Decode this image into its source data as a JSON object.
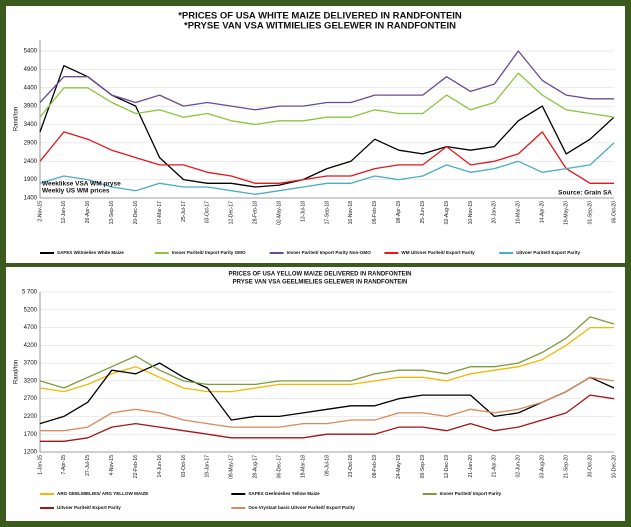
{
  "chart_data": [
    {
      "type": "line",
      "title": "*PRICES OF USA WHITE MAIZE DELIVERED IN RANDFONTEIN",
      "subtitle": "*PRYSE VAN VSA WITMIELIES GELEWER IN RANDFONTEIN",
      "y_label": "Rand/ton",
      "annotations": [
        "Weeklikse VSA WM pryse",
        "Weekly US WM prices"
      ],
      "source": "Source: Grain SA",
      "x": [
        "2-Nov-15",
        "12-Jan-16",
        "26-Apr-16",
        "13-Sep-16",
        "20-Dec-16",
        "07-Mar-17",
        "25-Jul-17",
        "03-Oct-17",
        "12-Dec-17",
        "28-Feb-18",
        "02-May-18",
        "13-Jul-18",
        "17-Sep-18",
        "16-Nov-18",
        "05-Feb-19",
        "08-Apr-19",
        "25-Jun-19",
        "02-Aug-19",
        "10-Nov-19",
        "20-Jan-20",
        "10-Mar-20",
        "14-Apr-20",
        "19-May-20",
        "01-Sep-20",
        "06-Oct-20"
      ],
      "ylim": [
        1400,
        5700
      ],
      "yticks": [
        1400,
        1900,
        2400,
        2900,
        3400,
        3900,
        4400,
        4900,
        5400
      ],
      "grid": true,
      "series": [
        {
          "name": "SAFEX  Witmielies  White Maize",
          "color": "#000000",
          "values": [
            3200,
            5000,
            4700,
            4200,
            3900,
            2500,
            1900,
            1800,
            1800,
            1700,
            1750,
            1900,
            2200,
            2400,
            3000,
            2700,
            2600,
            2800,
            2700,
            2800,
            3500,
            3900,
            2600,
            3000,
            3600
          ]
        },
        {
          "name": "Invoer  Pariteit/  Import  Parity GMO",
          "color": "#8cc63f",
          "values": [
            3600,
            4400,
            4400,
            4000,
            3700,
            3800,
            3600,
            3700,
            3500,
            3400,
            3500,
            3500,
            3600,
            3600,
            3800,
            3700,
            3700,
            4200,
            3800,
            4000,
            4800,
            4200,
            3800,
            3700,
            3600
          ]
        },
        {
          "name": "Invoer  Pariteit/  Import  Parity Non-GMO",
          "color": "#6a4c93",
          "values": [
            4000,
            4700,
            4700,
            4200,
            4000,
            4200,
            3900,
            4000,
            3900,
            3800,
            3900,
            3900,
            4000,
            4000,
            4200,
            4200,
            4200,
            4700,
            4300,
            4500,
            5400,
            4600,
            4200,
            4100,
            4100
          ]
        },
        {
          "name": "WM Uitvoer  Pariteit/  Export  Parity",
          "color": "#e3161b",
          "values": [
            2400,
            3200,
            3000,
            2700,
            2500,
            2300,
            2300,
            2100,
            2000,
            1800,
            1800,
            1900,
            2000,
            2000,
            2200,
            2300,
            2300,
            2800,
            2300,
            2400,
            2600,
            3200,
            2200,
            1800,
            1800
          ]
        },
        {
          "name": "Uitvoer  Pariteit/  Export  Parity",
          "color": "#4bacc6",
          "values": [
            1800,
            2000,
            1900,
            1700,
            1600,
            1800,
            1700,
            1700,
            1600,
            1500,
            1600,
            1700,
            1800,
            1800,
            2000,
            1900,
            2000,
            2300,
            2100,
            2200,
            2400,
            2100,
            2200,
            2300,
            2900
          ]
        }
      ]
    },
    {
      "type": "line",
      "title": "PRICES OF USA YELLOW MAIZE DELIVERED IN RANDFONTEIN",
      "subtitle": "PRYSE VAN VSA GEELMIELIES GELEWER IN RANDFONTEIN",
      "y_label": "Rand/ton",
      "x": [
        "1-Jan-15",
        "7-Apr-15",
        "27-Jul-15",
        "4-Nov-15",
        "22-Feb-16",
        "14-Jun-16",
        "03-Oct-16",
        "19-Jan-17",
        "09-May-17",
        "28-Aug-17",
        "06-Dec-17",
        "19-Mar-18",
        "09-Jul-18",
        "23-Oct-18",
        "08-Feb-19",
        "24-May-19",
        "09-Sep-19",
        "12-Dec-19",
        "21-Jan-20",
        "21-Apr-20",
        "02-Jun-20",
        "03-Aug-20",
        "21-Sep-20",
        "30-Oct-20",
        "10-Dec-20"
      ],
      "ylim": [
        1200,
        5700
      ],
      "yticks": [
        1200,
        1700,
        2200,
        2700,
        3200,
        3700,
        4200,
        4700,
        5200,
        {
          "value": 5700,
          "label": "5 700"
        }
      ],
      "grid": true,
      "series": [
        {
          "name": "ARG GEELMIELIES/  ARG YELLOW MAIZE",
          "color": "#f2b705",
          "values": [
            3000,
            2900,
            3100,
            3400,
            3600,
            3300,
            3000,
            2900,
            2900,
            3000,
            3100,
            3100,
            3100,
            3100,
            3200,
            3300,
            3300,
            3200,
            3400,
            3500,
            3600,
            3800,
            4200,
            4700,
            4700
          ]
        },
        {
          "name": "SAFEX  Geelmielies  Yellow Maize",
          "color": "#000000",
          "values": [
            2000,
            2200,
            2600,
            3500,
            3400,
            3700,
            3300,
            3000,
            2100,
            2200,
            2200,
            2300,
            2400,
            2500,
            2500,
            2700,
            2800,
            2800,
            2800,
            2200,
            2300,
            2600,
            2900,
            3300,
            3000
          ]
        },
        {
          "name": "Invoer  Pariteit/  Import  Parity",
          "color": "#7f9a3a",
          "values": [
            3200,
            3000,
            3300,
            3600,
            3900,
            3500,
            3200,
            3100,
            3100,
            3100,
            3200,
            3200,
            3200,
            3200,
            3400,
            3500,
            3500,
            3400,
            3600,
            3600,
            3700,
            4000,
            4400,
            5000,
            4800
          ]
        },
        {
          "name": "Uitvoer  Pariteit/  Export  Parity",
          "color": "#a31515",
          "values": [
            1500,
            1500,
            1600,
            1900,
            2000,
            1900,
            1800,
            1700,
            1600,
            1600,
            1600,
            1600,
            1700,
            1700,
            1700,
            1900,
            1900,
            1800,
            2000,
            1800,
            1900,
            2100,
            2300,
            2800,
            2700
          ]
        },
        {
          "name": "Oos-Vrystaat basis  Uitvoer  Pariteit/  Export  Parity",
          "color": "#d9895b",
          "values": [
            1800,
            1800,
            1900,
            2300,
            2400,
            2300,
            2100,
            2000,
            1900,
            1900,
            1900,
            2000,
            2000,
            2100,
            2100,
            2300,
            2300,
            2200,
            2400,
            2300,
            2400,
            2600,
            2900,
            3300,
            3200
          ]
        }
      ]
    }
  ]
}
